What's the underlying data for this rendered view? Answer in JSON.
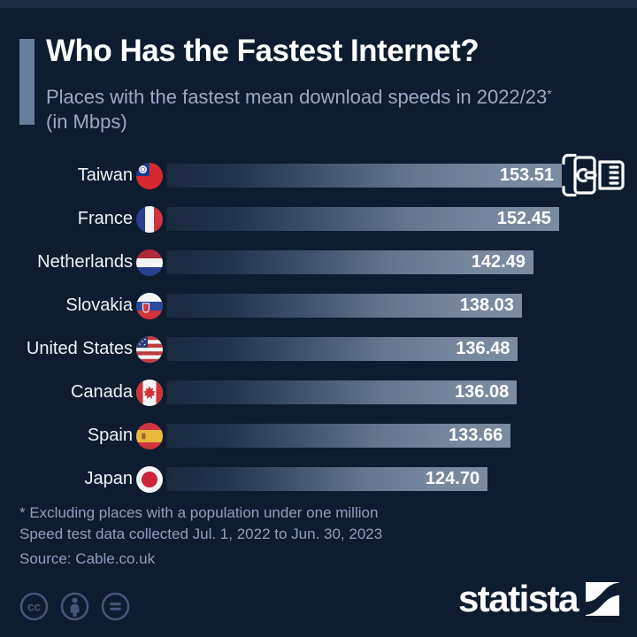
{
  "header": {
    "title": "Who Has the Fastest Internet?",
    "subtitle_line1": "Places with the fastest mean download speeds in 2022/23",
    "subtitle_asterisk": "*",
    "subtitle_line2": "(in Mbps)"
  },
  "chart_data": {
    "type": "bar",
    "orientation": "horizontal",
    "title": "Who Has the Fastest Internet?",
    "subtitle": "Places with the fastest mean download speeds in 2022/23* (in Mbps)",
    "unit": "Mbps",
    "xlim": [
      0,
      153.51
    ],
    "grid": false,
    "legend": false,
    "categories": [
      "Taiwan",
      "France",
      "Netherlands",
      "Slovakia",
      "United States",
      "Canada",
      "Spain",
      "Japan"
    ],
    "values": [
      153.51,
      152.45,
      142.49,
      138.03,
      136.48,
      136.08,
      133.66,
      124.7
    ],
    "value_labels": [
      "153.51",
      "152.45",
      "142.49",
      "138.03",
      "136.48",
      "136.08",
      "133.66",
      "124.70"
    ],
    "flags": [
      "taiwan",
      "france",
      "netherlands",
      "slovakia",
      "usa",
      "canada",
      "spain",
      "japan"
    ]
  },
  "footnotes": {
    "line1": "* Excluding places with a population under one million",
    "line2": "Speed test data collected Jul. 1, 2022 to Jun. 30, 2023",
    "line3": "Source: Cable.co.uk"
  },
  "footer": {
    "brand": "statista",
    "license_icons": [
      "cc-icon",
      "attribution-person-icon",
      "no-derivatives-equals-icon"
    ]
  },
  "colors": {
    "background": "#0e1c2f",
    "accent_bar": "#677d9c",
    "bar_gradient_start": "#182940",
    "bar_gradient_end": "#7b8ca2",
    "title_text": "#ffffff",
    "subtitle_text": "#97abc7",
    "footnote_text": "#8ba1c0",
    "value_text": "#ffffff",
    "license_icon": "#44587a"
  }
}
